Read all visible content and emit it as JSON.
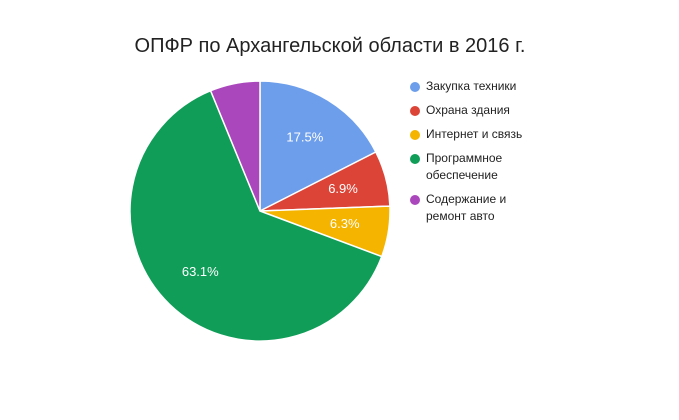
{
  "chart_data": {
    "type": "pie",
    "title": "ОПФР по Архангельской области в 2016 г.",
    "categories": [
      "Закупка техники",
      "Охрана здания",
      "Интернет и связь",
      "Программное обеспечение",
      "Содержание и ремонт авто"
    ],
    "values": [
      17.5,
      6.9,
      6.3,
      63.1,
      6.2
    ],
    "value_labels": [
      "17.5%",
      "6.9%",
      "6.3%",
      "63.1%",
      null
    ],
    "colors": [
      "#6d9eeb",
      "#dc4437",
      "#f4b400",
      "#0f9d58",
      "#ab47bc"
    ],
    "legend": "right"
  }
}
